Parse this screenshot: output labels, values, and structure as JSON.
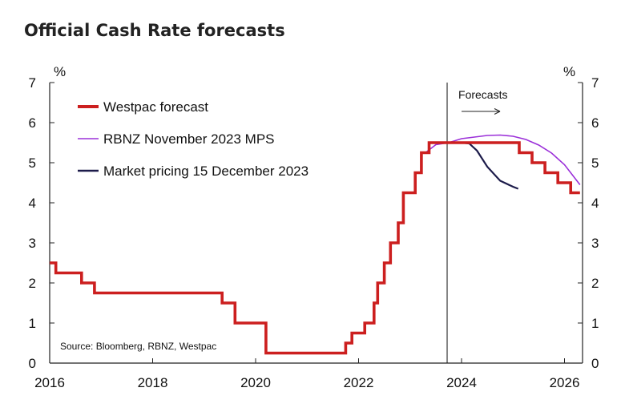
{
  "chart_data": {
    "type": "line",
    "title": "Official Cash Rate forecasts",
    "ylabel_left": "%",
    "ylabel_right": "%",
    "xlim": [
      2016,
      2026.35
    ],
    "ylim": [
      0,
      7
    ],
    "x_ticks": [
      2016,
      2018,
      2020,
      2022,
      2024,
      2026
    ],
    "y_ticks": [
      0,
      1,
      2,
      3,
      4,
      5,
      6,
      7
    ],
    "grid": false,
    "legend_position": "top-left",
    "forecast_start": 2023.72,
    "forecast_label": "Forecasts",
    "source": "Source: Bloomberg, RBNZ, Westpac",
    "series": [
      {
        "name": "Westpac forecast",
        "color": "#cc1f1f",
        "style": "step",
        "points": [
          [
            2016.0,
            2.5
          ],
          [
            2016.12,
            2.25
          ],
          [
            2016.62,
            2.0
          ],
          [
            2016.87,
            1.75
          ],
          [
            2019.35,
            1.5
          ],
          [
            2019.6,
            1.0
          ],
          [
            2020.2,
            0.25
          ],
          [
            2021.75,
            0.5
          ],
          [
            2021.87,
            0.75
          ],
          [
            2022.12,
            1.0
          ],
          [
            2022.3,
            1.5
          ],
          [
            2022.37,
            2.0
          ],
          [
            2022.5,
            2.5
          ],
          [
            2022.62,
            3.0
          ],
          [
            2022.77,
            3.5
          ],
          [
            2022.87,
            4.25
          ],
          [
            2023.1,
            4.75
          ],
          [
            2023.22,
            5.25
          ],
          [
            2023.37,
            5.5
          ],
          [
            2025.12,
            5.25
          ],
          [
            2025.37,
            5.0
          ],
          [
            2025.62,
            4.75
          ],
          [
            2025.87,
            4.5
          ],
          [
            2026.12,
            4.25
          ],
          [
            2026.3,
            4.25
          ]
        ]
      },
      {
        "name": "RBNZ November 2023 MPS",
        "color": "#9b30d9",
        "style": "line",
        "points": [
          [
            2023.3,
            5.25
          ],
          [
            2023.5,
            5.45
          ],
          [
            2023.75,
            5.5
          ],
          [
            2024.0,
            5.6
          ],
          [
            2024.25,
            5.64
          ],
          [
            2024.5,
            5.68
          ],
          [
            2024.75,
            5.69
          ],
          [
            2025.0,
            5.66
          ],
          [
            2025.25,
            5.58
          ],
          [
            2025.5,
            5.44
          ],
          [
            2025.75,
            5.24
          ],
          [
            2026.0,
            4.95
          ],
          [
            2026.3,
            4.45
          ]
        ]
      },
      {
        "name": "Market pricing 15 December 2023",
        "color": "#1c1b4a",
        "style": "line",
        "points": [
          [
            2023.72,
            5.5
          ],
          [
            2024.0,
            5.5
          ],
          [
            2024.15,
            5.48
          ],
          [
            2024.3,
            5.3
          ],
          [
            2024.5,
            4.9
          ],
          [
            2024.75,
            4.55
          ],
          [
            2025.0,
            4.4
          ],
          [
            2025.1,
            4.35
          ]
        ]
      }
    ]
  }
}
